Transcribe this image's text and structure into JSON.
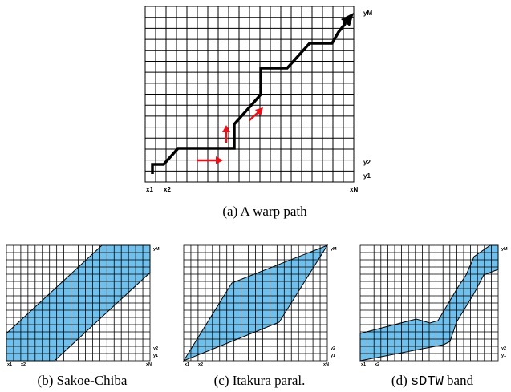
{
  "panels": [
    {
      "id": "a",
      "caption_prefix": "(a) ",
      "caption_mono": "",
      "caption_text": "A warp path",
      "labels": {
        "x1": "x1",
        "x2": "x2",
        "xN": "xN",
        "y1": "y1",
        "y2": "y2",
        "yM": "yM"
      }
    },
    {
      "id": "b",
      "caption_prefix": "(b) ",
      "caption_mono": "",
      "caption_text": "Sakoe-Chiba",
      "labels": {
        "x1": "x1",
        "x2": "x2",
        "xN": "xN",
        "y1": "y1",
        "y2": "y2",
        "yM": "yM"
      }
    },
    {
      "id": "c",
      "caption_prefix": "(c) ",
      "caption_mono": "",
      "caption_text": "Itakura paral.",
      "labels": {
        "x1": "x1",
        "x2": "x2",
        "xN": "xN",
        "y1": "y1",
        "y2": "y2",
        "yM": "yM"
      }
    },
    {
      "id": "d",
      "caption_prefix": "(d) ",
      "caption_mono": "sDTW",
      "caption_text": " band",
      "labels": {
        "x1": "x1",
        "x2": "x2",
        "xN": "xN",
        "y1": "y1",
        "y2": "y2",
        "yM": "yM"
      }
    }
  ],
  "colors": {
    "band_fill": "#6fc0ec",
    "warp_path": "#000000",
    "arrows": "#e8111a",
    "grid": "#000000"
  }
}
